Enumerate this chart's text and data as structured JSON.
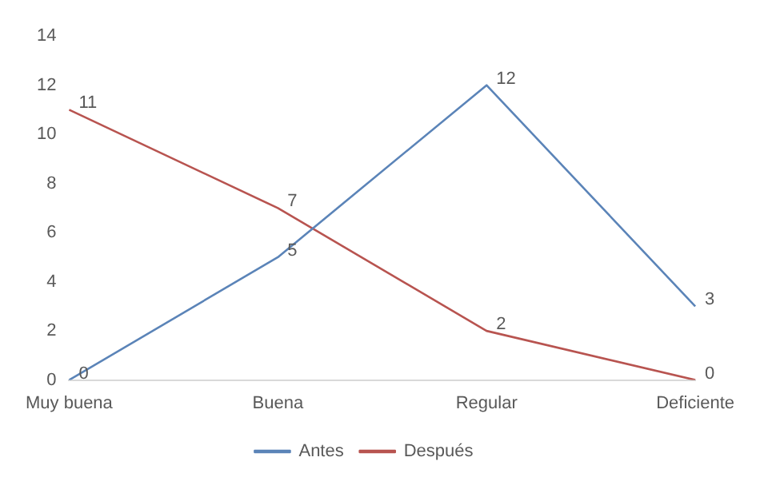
{
  "chart_data": {
    "type": "line",
    "categories": [
      "Muy buena",
      "Buena",
      "Regular",
      "Deficiente"
    ],
    "series": [
      {
        "name": "Antes",
        "color": "#5b84b8",
        "values": [
          0,
          5,
          12,
          3
        ]
      },
      {
        "name": "Después",
        "color": "#b85450",
        "values": [
          11,
          7,
          2,
          0
        ]
      }
    ],
    "ylim": [
      0,
      14
    ],
    "yticks": [
      0,
      2,
      4,
      6,
      8,
      10,
      12,
      14
    ],
    "grid": false,
    "legend": "bottom",
    "marker": "none",
    "line_style": "solid",
    "data_labels": true
  }
}
